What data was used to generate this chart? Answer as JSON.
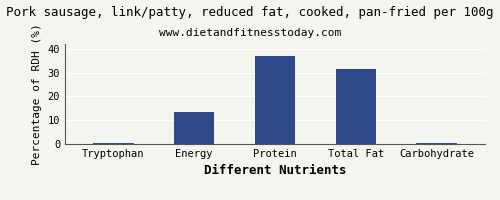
{
  "title": "Pork sausage, link/patty, reduced fat, cooked, pan-fried per 100g",
  "subtitle": "www.dietandfitnesstoday.com",
  "categories": [
    "Tryptophan",
    "Energy",
    "Protein",
    "Total Fat",
    "Carbohydrate"
  ],
  "values": [
    0.5,
    13.5,
    37.0,
    31.5,
    0.5
  ],
  "bar_color": "#2e4a8a",
  "xlabel": "Different Nutrients",
  "ylabel": "Percentage of RDH (%)",
  "ylim": [
    0,
    42
  ],
  "yticks": [
    0,
    10,
    20,
    30,
    40
  ],
  "background_color": "#f5f5f0",
  "title_fontsize": 9,
  "subtitle_fontsize": 8,
  "axis_label_fontsize": 8,
  "tick_fontsize": 7.5,
  "xlabel_fontsize": 9,
  "xlabel_bold": true
}
